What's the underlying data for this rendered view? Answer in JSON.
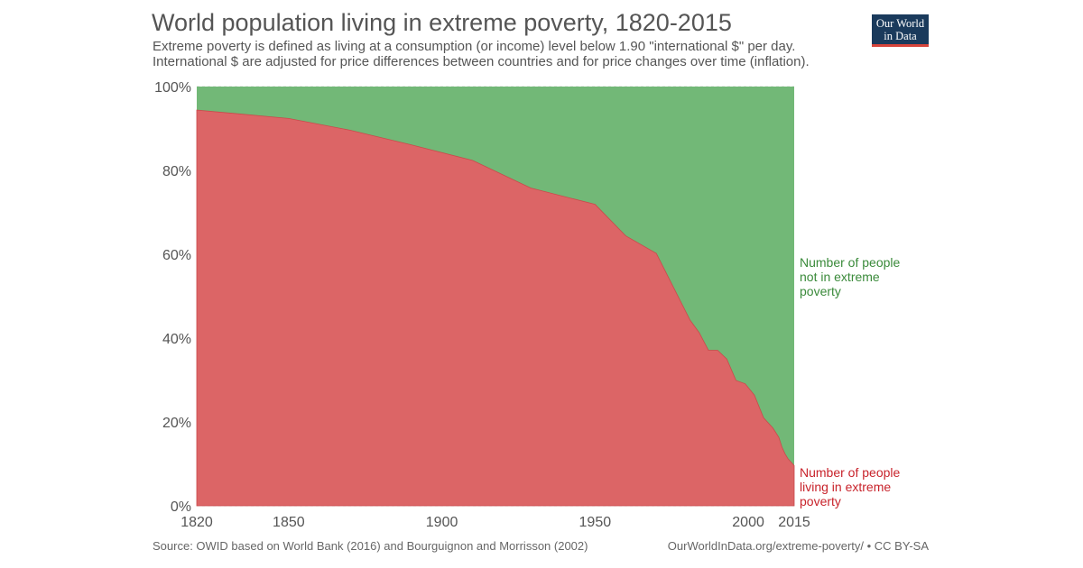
{
  "title": "World population living in extreme poverty, 1820-2015",
  "subtitle_line1": "Extreme poverty is defined as living at a consumption (or income) level below 1.90 \"international $\" per day.",
  "subtitle_line2": "International $ are adjusted for price differences between countries and for price changes over time (inflation).",
  "logo": {
    "line1": "Our World",
    "line2": "in Data"
  },
  "source": "Source: OWID based on World Bank (2016) and Bourguignon and Morrisson (2002)",
  "license": "OurWorldInData.org/extreme-poverty/ • CC BY-SA",
  "colors": {
    "poverty": "#dc6566",
    "not_poverty": "#72b877",
    "poverty_label": "#c8232b",
    "not_poverty_label": "#3a8a3a",
    "grid": "#d7d7d7",
    "axis_text": "#555555"
  },
  "chart_data": {
    "type": "area",
    "stacked": true,
    "title": "World population living in extreme poverty, 1820-2015",
    "xlim": [
      1820,
      2015
    ],
    "ylim": [
      0,
      100
    ],
    "x_ticks": [
      1820,
      1850,
      1900,
      1950,
      2000,
      2015
    ],
    "y_ticks": [
      0,
      20,
      40,
      60,
      80,
      100
    ],
    "y_tick_labels": [
      "0%",
      "20%",
      "40%",
      "60%",
      "80%",
      "100%"
    ],
    "grid": true,
    "x": [
      1820,
      1850,
      1870,
      1890,
      1910,
      1929,
      1950,
      1960,
      1970,
      1981,
      1984,
      1987,
      1990,
      1993,
      1996,
      1999,
      2002,
      2005,
      2008,
      2010,
      2011,
      2012,
      2013,
      2015
    ],
    "series": [
      {
        "name": "Number of people living in extreme poverty",
        "label_lines": [
          "Number of people",
          "living in extreme",
          "poverty"
        ],
        "values": [
          94.4,
          92.4,
          89.6,
          86.1,
          82.4,
          75.8,
          71.9,
          64.4,
          60.2,
          44.3,
          41.3,
          37.1,
          37.1,
          35.0,
          29.9,
          29.1,
          26.4,
          21.0,
          18.6,
          16.3,
          14.0,
          12.4,
          11.2,
          9.6
        ]
      },
      {
        "name": "Number of people not in extreme poverty",
        "label_lines": [
          "Number of people",
          "not in extreme",
          "poverty"
        ],
        "values": [
          5.6,
          7.6,
          10.4,
          13.9,
          17.6,
          24.2,
          28.1,
          35.6,
          39.8,
          55.7,
          58.7,
          62.9,
          62.9,
          65.0,
          70.1,
          70.9,
          73.6,
          79.0,
          81.4,
          83.7,
          86.0,
          87.6,
          88.8,
          90.4
        ]
      }
    ]
  }
}
